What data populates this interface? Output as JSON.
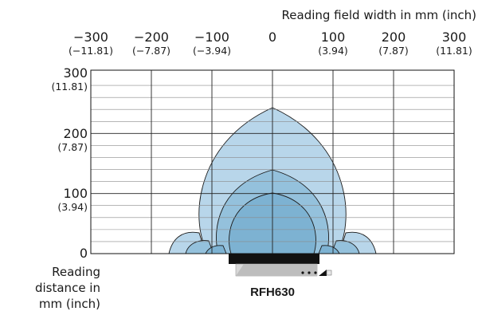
{
  "title": "Reading field width in mm (inch)",
  "x_ticks": [
    {
      "mm": "−300",
      "inch": "(−11.81)",
      "value": -300
    },
    {
      "mm": "−200",
      "inch": "(−7.87)",
      "value": -200
    },
    {
      "mm": "−100",
      "inch": "(−3.94)",
      "value": -100
    },
    {
      "mm": "0",
      "inch": "",
      "value": 0
    },
    {
      "mm": "100",
      "inch": "(3.94)",
      "value": 100
    },
    {
      "mm": "200",
      "inch": "(7.87)",
      "value": 200
    },
    {
      "mm": "300",
      "inch": "(11.81)",
      "value": 300
    }
  ],
  "y_ticks": [
    {
      "mm": "300",
      "inch": "(11.81)",
      "value": 300
    },
    {
      "mm": "200",
      "inch": "(7.87)",
      "value": 200
    },
    {
      "mm": "100",
      "inch": "(3.94)",
      "value": 100
    },
    {
      "mm": "0",
      "inch": "",
      "value": 0
    }
  ],
  "y_label_lines": [
    "Reading",
    "distance in",
    "mm (inch)"
  ],
  "device_label": "RFH630",
  "field_color_outer": "#b8d6ea",
  "field_color_mid": "#94c1dc",
  "field_color_inner": "#7db2d2"
}
